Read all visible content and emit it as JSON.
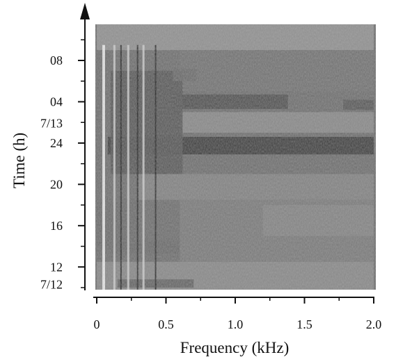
{
  "chart_data": {
    "type": "heatmap",
    "title": "",
    "xlabel": "Frequency (kHz)",
    "ylabel": "Time (h)",
    "xlim": [
      0,
      2.0
    ],
    "x_ticks": [
      "0",
      "0.5",
      "1.0",
      "1.5",
      "2.0"
    ],
    "x_tick_values": [
      0,
      0.5,
      1.0,
      1.5,
      2.0
    ],
    "y_ticks": [
      "12",
      "16",
      "20",
      "24",
      "04",
      "08"
    ],
    "y_tick_hours": [
      12,
      16,
      20,
      24,
      28,
      32
    ],
    "date_labels": [
      {
        "text": "7/12",
        "hour": 10.3
      },
      {
        "text": "7/13",
        "hour": 25.9
      }
    ],
    "ylim_hours": [
      9.8,
      35.5
    ],
    "colormap": {
      "low": "#d8d8d8",
      "high": "#1a1a1a"
    },
    "dark_bands": [
      {
        "f0": 0.08,
        "f1": 2.0,
        "t0": 22.9,
        "t1": 24.6,
        "level": 0.85
      },
      {
        "f0": 0.55,
        "f1": 1.38,
        "t0": 27.3,
        "t1": 28.7,
        "level": 0.75
      },
      {
        "f0": 1.78,
        "f1": 2.0,
        "t0": 27.2,
        "t1": 28.2,
        "level": 0.7
      },
      {
        "f0": 0.1,
        "f1": 0.62,
        "t0": 21.0,
        "t1": 31.0,
        "level": 0.7
      },
      {
        "f0": 0.1,
        "f1": 0.6,
        "t0": 13.3,
        "t1": 14.6,
        "level": 0.6
      },
      {
        "f0": 0.15,
        "f1": 0.7,
        "t0": 10.0,
        "t1": 10.8,
        "level": 0.65
      },
      {
        "f0": 0.55,
        "f1": 0.72,
        "t0": 30.0,
        "t1": 31.2,
        "level": 0.6
      }
    ]
  }
}
